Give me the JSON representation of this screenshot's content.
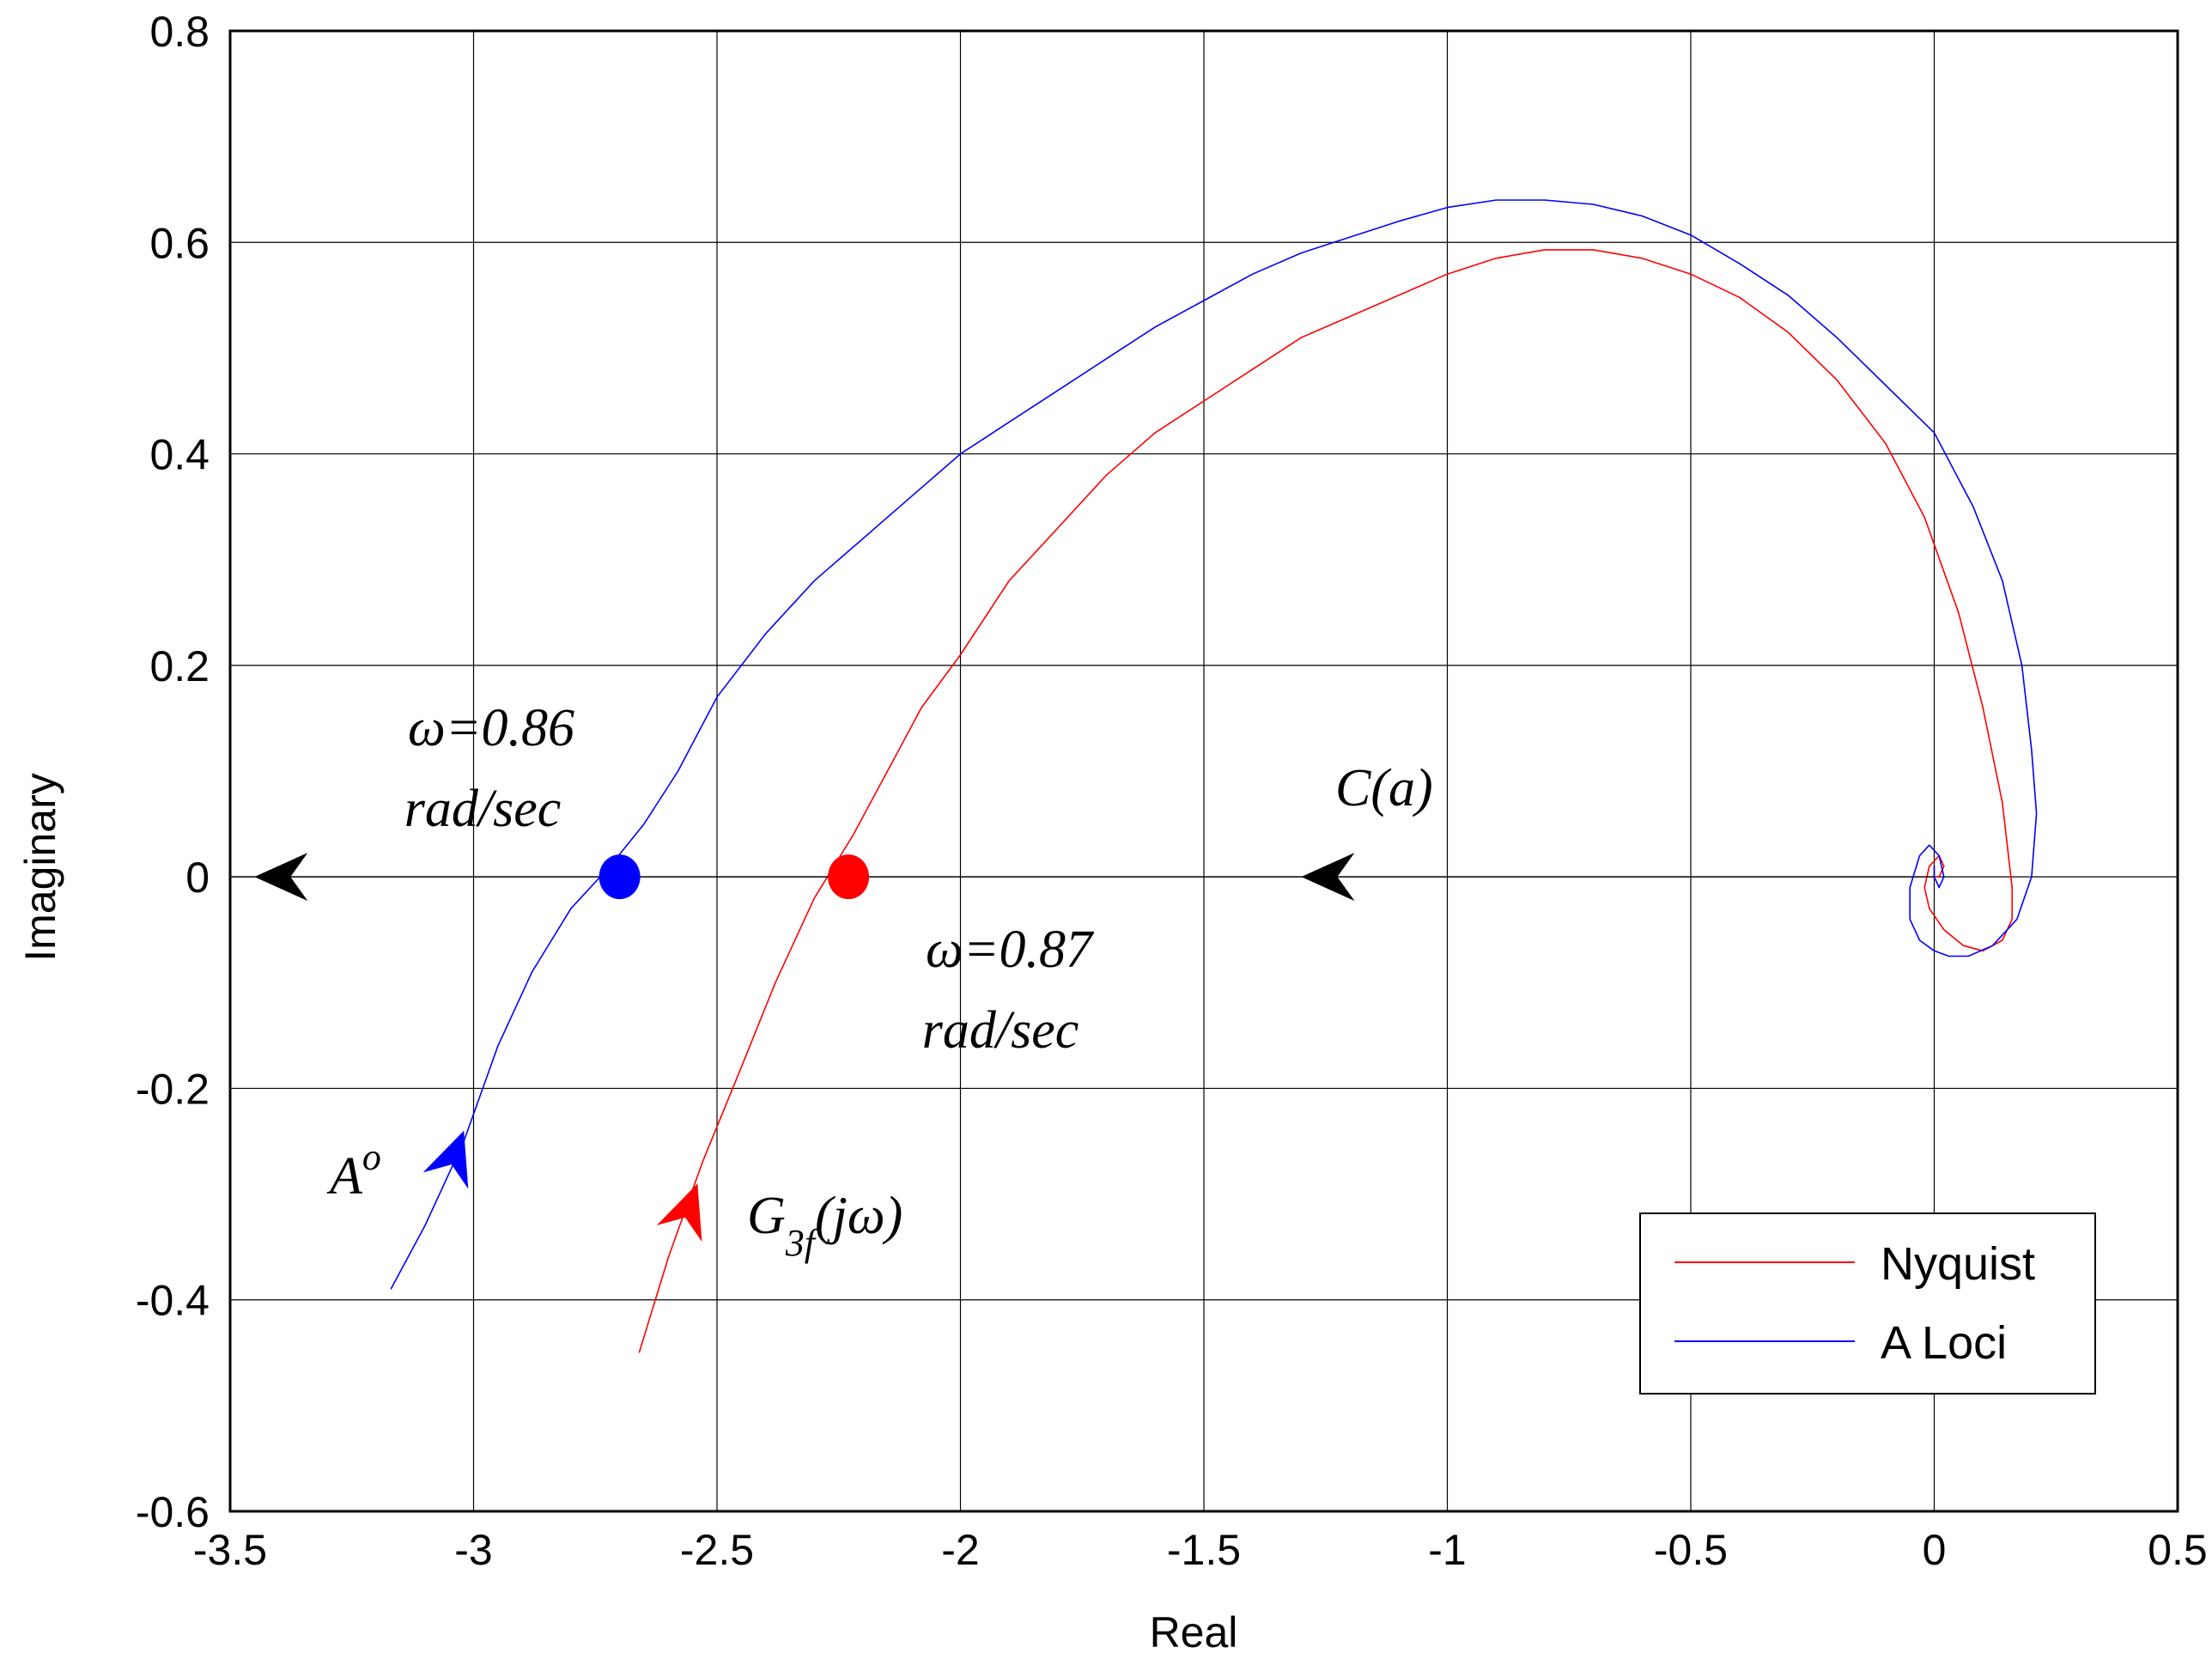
{
  "chart_data": {
    "type": "line",
    "title": "",
    "xlabel": "Real",
    "ylabel": "Imaginary",
    "xlim": [
      -3.5,
      0.5
    ],
    "ylim": [
      -0.6,
      0.8
    ],
    "xticks": [
      -3.5,
      -3,
      -2.5,
      -2,
      -1.5,
      -1,
      -0.5,
      0,
      0.5
    ],
    "yticks": [
      -0.6,
      -0.4,
      -0.2,
      0,
      0.2,
      0.4,
      0.6,
      0.8
    ],
    "xtick_labels": [
      "-3.5",
      "-3",
      "-2.5",
      "-2",
      "-1.5",
      "-1",
      "-0.5",
      "0",
      "0.5"
    ],
    "ytick_labels": [
      "-0.6",
      "-0.4",
      "-0.2",
      "0",
      "0.2",
      "0.4",
      "0.6",
      "0.8"
    ],
    "grid": true,
    "legend_position": "bottom-right",
    "series": [
      {
        "name": "Nyquist",
        "color": "#ff0000",
        "x": [
          -2.66,
          -2.6,
          -2.53,
          -2.45,
          -2.38,
          -2.3,
          -2.22,
          -2.15,
          -2.08,
          -2.0,
          -1.9,
          -1.8,
          -1.7,
          -1.6,
          -1.5,
          -1.4,
          -1.3,
          -1.2,
          -1.1,
          -1.0,
          -0.9,
          -0.8,
          -0.7,
          -0.6,
          -0.5,
          -0.4,
          -0.3,
          -0.2,
          -0.1,
          -0.02,
          0.05,
          0.1,
          0.14,
          0.16,
          0.16,
          0.14,
          0.1,
          0.06,
          0.02,
          -0.01,
          -0.02,
          -0.01,
          0.01,
          0.02,
          0.01,
          0.0,
          0.0
        ],
        "y": [
          -0.45,
          -0.36,
          -0.27,
          -0.18,
          -0.1,
          -0.02,
          0.04,
          0.1,
          0.16,
          0.21,
          0.28,
          0.33,
          0.38,
          0.42,
          0.45,
          0.48,
          0.51,
          0.53,
          0.55,
          0.57,
          0.585,
          0.593,
          0.593,
          0.585,
          0.57,
          0.548,
          0.515,
          0.47,
          0.41,
          0.34,
          0.25,
          0.16,
          0.07,
          -0.01,
          -0.04,
          -0.06,
          -0.07,
          -0.065,
          -0.05,
          -0.03,
          -0.01,
          0.01,
          0.02,
          0.01,
          0.0,
          0.0,
          0.01
        ]
      },
      {
        "name": "A Loci",
        "color": "#0000ff",
        "x": [
          -3.17,
          -3.1,
          -3.02,
          -2.95,
          -2.88,
          -2.8,
          -2.72,
          -2.65,
          -2.58,
          -2.5,
          -2.4,
          -2.3,
          -2.2,
          -2.1,
          -2.0,
          -1.9,
          -1.8,
          -1.7,
          -1.6,
          -1.5,
          -1.4,
          -1.3,
          -1.2,
          -1.1,
          -1.0,
          -0.9,
          -0.8,
          -0.7,
          -0.6,
          -0.5,
          -0.4,
          -0.3,
          -0.2,
          -0.1,
          0.0,
          0.08,
          0.14,
          0.18,
          0.2,
          0.21,
          0.2,
          0.17,
          0.12,
          0.07,
          0.03,
          0.0,
          -0.03,
          -0.05,
          -0.05,
          -0.03,
          -0.01,
          0.01,
          0.02,
          0.01,
          0.0,
          0.0
        ],
        "y": [
          -0.39,
          -0.33,
          -0.25,
          -0.16,
          -0.09,
          -0.03,
          0.01,
          0.05,
          0.1,
          0.17,
          0.23,
          0.28,
          0.32,
          0.36,
          0.4,
          0.43,
          0.46,
          0.49,
          0.52,
          0.545,
          0.57,
          0.59,
          0.605,
          0.62,
          0.633,
          0.64,
          0.64,
          0.636,
          0.625,
          0.607,
          0.58,
          0.55,
          0.51,
          0.465,
          0.42,
          0.35,
          0.28,
          0.2,
          0.12,
          0.06,
          0.0,
          -0.04,
          -0.065,
          -0.075,
          -0.075,
          -0.07,
          -0.06,
          -0.04,
          -0.01,
          0.02,
          0.03,
          0.02,
          0.0,
          -0.01,
          0.0,
          0.01
        ]
      },
      {
        "name": "C(a)",
        "color": "#000000",
        "x": [
          -3.5,
          0.0
        ],
        "y": [
          0,
          0
        ]
      }
    ],
    "points": [
      {
        "name": "A Loci intersection",
        "x": -2.7,
        "y": 0.0,
        "color": "#0000ff"
      },
      {
        "name": "Nyquist intersection",
        "x": -2.23,
        "y": 0.0,
        "color": "#ff0000"
      }
    ],
    "arrows": [
      {
        "name": "ca-arrow-left",
        "x": -3.45,
        "y": 0.0,
        "direction": "left",
        "color": "#000000"
      },
      {
        "name": "ca-arrow-mid",
        "x": -1.3,
        "y": 0.0,
        "direction": "left",
        "color": "#000000"
      },
      {
        "name": "aloci-arrow",
        "x": -3.02,
        "y": -0.24,
        "direction": "up-right",
        "color": "#0000ff"
      },
      {
        "name": "nyquist-arrow",
        "x": -2.54,
        "y": -0.29,
        "direction": "up-right",
        "color": "#ff0000"
      }
    ],
    "annotations": {
      "omega_a_line1": "ω=0.86",
      "omega_a_line2": "rad/sec",
      "omega_n_line1": "ω=0.87",
      "omega_n_line2": "rad/sec",
      "c_a": "C(a)",
      "a_base": "A",
      "a_sup": "o",
      "g_base": "G",
      "g_sub": "3f",
      "g_rest": "(jω)"
    }
  }
}
